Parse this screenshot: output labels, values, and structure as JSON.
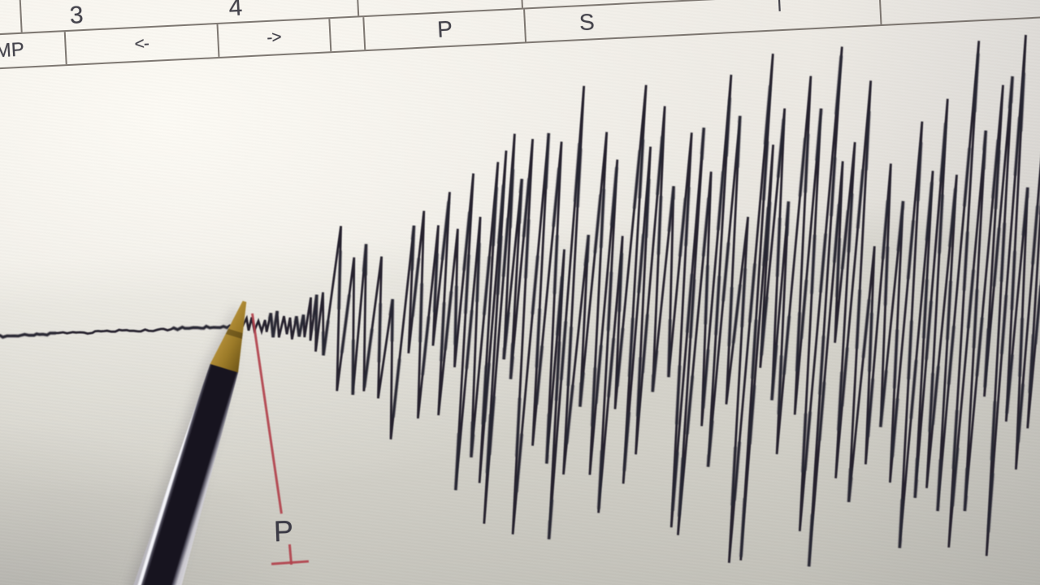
{
  "scene": {
    "description": "Photograph of a seismograph screen; a ballpoint pen points at the P-wave onset of an earthquake trace",
    "colors": {
      "paper": "#e9e6e0",
      "ink": "#26242e",
      "grid_border": "#68625c",
      "label_text": "#45444c",
      "marker_red": "#b2424c",
      "pen_gold": "#a8862f",
      "pen_ink_dark": "#17141f"
    }
  },
  "toolbar": {
    "row1": {
      "cells": [
        {
          "label": ""
        },
        {
          "label": "3"
        },
        {
          "label": "4"
        },
        {
          "label": ""
        },
        {
          "label": ""
        },
        {
          "label": ""
        }
      ]
    },
    "row2": {
      "cells": [
        {
          "label": "MP"
        },
        {
          "label": "<-"
        },
        {
          "label": "->"
        },
        {
          "label": ""
        },
        {
          "label": "P"
        },
        {
          "label": "S"
        },
        {
          "label": ""
        }
      ]
    },
    "partial_glyph": "|"
  },
  "annotation": {
    "p_label": "P"
  },
  "chart_data": {
    "type": "line",
    "subtype": "seismogram",
    "title": "",
    "xlabel": "",
    "ylabel": "",
    "grid": false,
    "legend": "none",
    "onset_x": 301,
    "onset_label": "P",
    "x_range": [
      0,
      1286
    ],
    "center_keypoints": [
      [
        0,
        414
      ],
      [
        300,
        401
      ],
      [
        640,
        385
      ],
      [
        980,
        370
      ],
      [
        1280,
        356
      ]
    ],
    "envelope_keypoints": [
      [
        0,
        2
      ],
      [
        290,
        2
      ],
      [
        301,
        7
      ],
      [
        314,
        18
      ],
      [
        330,
        13
      ],
      [
        345,
        18
      ],
      [
        362,
        24
      ],
      [
        385,
        30
      ],
      [
        400,
        48
      ],
      [
        415,
        150
      ],
      [
        430,
        92
      ],
      [
        455,
        112
      ],
      [
        480,
        128
      ],
      [
        510,
        148
      ],
      [
        540,
        165
      ],
      [
        575,
        195
      ],
      [
        610,
        232
      ],
      [
        645,
        258
      ],
      [
        680,
        262
      ],
      [
        715,
        250
      ],
      [
        750,
        240
      ],
      [
        785,
        262
      ],
      [
        820,
        282
      ],
      [
        855,
        295
      ],
      [
        890,
        285
      ],
      [
        925,
        298
      ],
      [
        960,
        305
      ],
      [
        995,
        298
      ],
      [
        1030,
        305
      ],
      [
        1065,
        292
      ],
      [
        1100,
        308
      ],
      [
        1135,
        297
      ],
      [
        1170,
        305
      ],
      [
        1205,
        300
      ],
      [
        1240,
        306
      ],
      [
        1280,
        303
      ]
    ],
    "stroke_color": "#26242e",
    "baseline_color": "#2b2933",
    "lean": 0.07,
    "seed": 1337,
    "y_clamp_bottom": 714
  }
}
